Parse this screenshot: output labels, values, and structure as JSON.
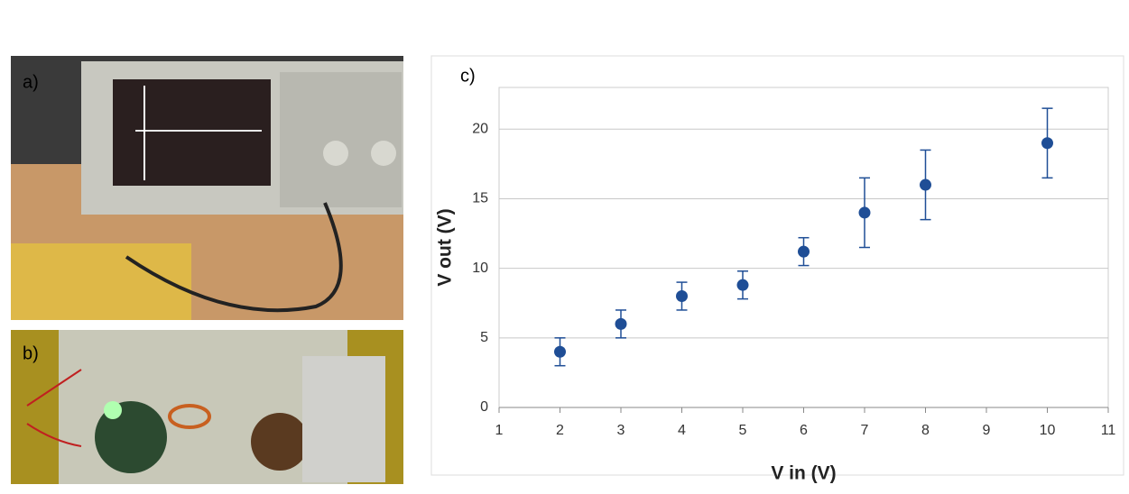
{
  "panel_labels": {
    "a": "a)",
    "b": "b)",
    "c": "c)"
  },
  "chart_data": {
    "type": "scatter",
    "x_label": "V in (V)",
    "y_label": "V out (V)",
    "x": [
      2,
      3,
      4,
      5,
      6,
      7,
      8,
      10
    ],
    "values": [
      4,
      6,
      8,
      8.8,
      11.2,
      14,
      16,
      19
    ],
    "errors": [
      1,
      1,
      1,
      1,
      1,
      2.5,
      2.5,
      2.5
    ],
    "color": "#1f4e96",
    "xlim": [
      1,
      11
    ],
    "xticks": [
      1,
      2,
      3,
      4,
      5,
      6,
      7,
      8,
      9,
      10,
      11
    ],
    "ylim": [
      0,
      23
    ],
    "yticks": [
      0,
      5,
      10,
      15,
      20
    ],
    "grid": true
  }
}
